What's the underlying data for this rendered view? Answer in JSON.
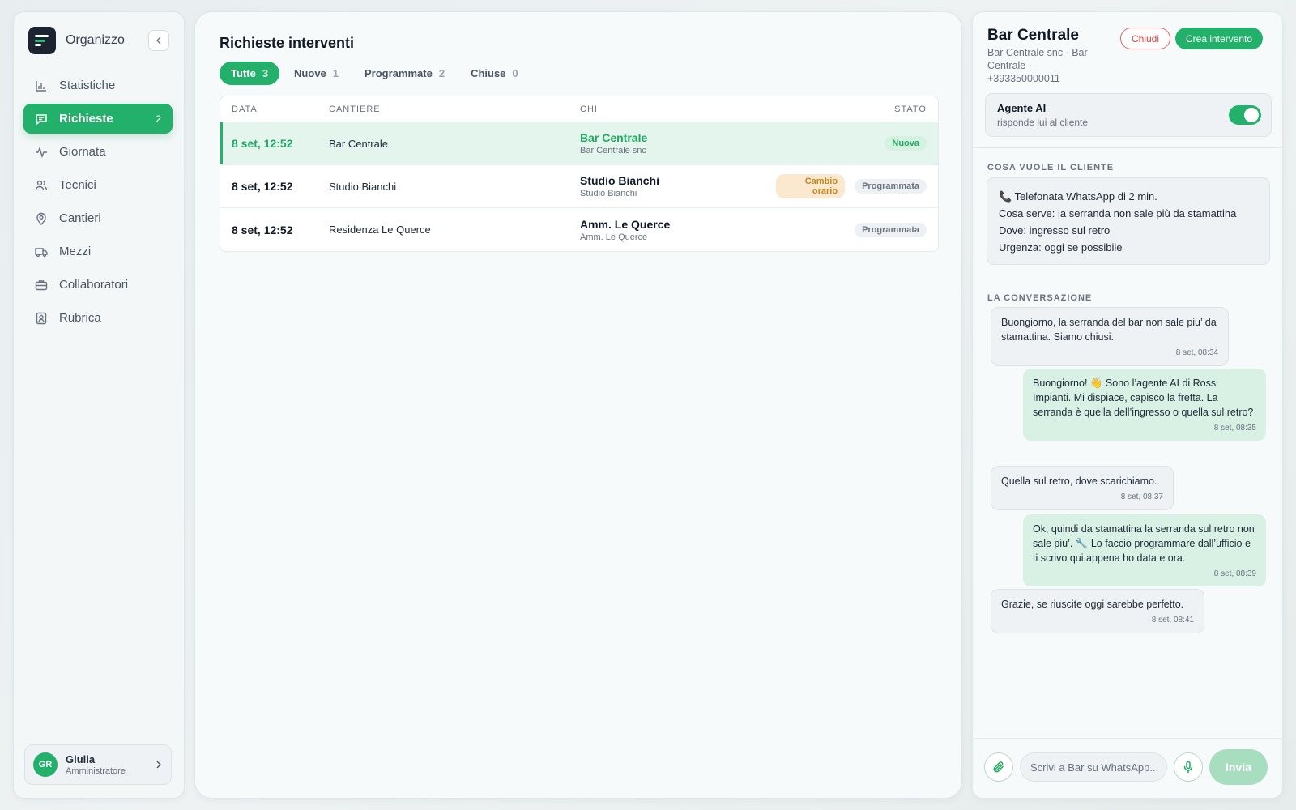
{
  "app": {
    "name": "Organizzo"
  },
  "sidebar": {
    "items": [
      {
        "label": "Statistiche",
        "icon": "bar-chart-icon"
      },
      {
        "label": "Richieste",
        "icon": "message-icon",
        "count": "2",
        "active": true
      },
      {
        "label": "Giornata",
        "icon": "activity-icon"
      },
      {
        "label": "Tecnici",
        "icon": "users-icon"
      },
      {
        "label": "Cantieri",
        "icon": "map-pin-icon"
      },
      {
        "label": "Mezzi",
        "icon": "truck-icon"
      },
      {
        "label": "Collaboratori",
        "icon": "briefcase-icon"
      },
      {
        "label": "Rubrica",
        "icon": "contact-book-icon"
      }
    ],
    "user": {
      "initials": "GR",
      "name": "Giulia",
      "role": "Amministratore"
    }
  },
  "main": {
    "title": "Richieste interventi",
    "tabs": [
      {
        "label": "Tutte",
        "count": "3",
        "active": true
      },
      {
        "label": "Nuove",
        "count": "1"
      },
      {
        "label": "Programmate",
        "count": "2"
      },
      {
        "label": "Chiuse",
        "count": "0"
      }
    ],
    "table": {
      "headers": [
        "DATA",
        "CANTIERE",
        "CHI",
        "STATO"
      ],
      "rows": [
        {
          "data": "8 set, 12:52",
          "cantiere": "Bar Centrale",
          "chi": "Bar Centrale",
          "chi_sub": "Bar Centrale snc",
          "extra_badge": "",
          "stato": "Nuova"
        },
        {
          "data": "8 set, 12:52",
          "cantiere": "Studio Bianchi",
          "chi": "Studio Bianchi",
          "chi_sub": "Studio Bianchi",
          "extra_badge": "Cambio orario",
          "stato": "Programmata"
        },
        {
          "data": "8 set, 12:52",
          "cantiere": "Residenza Le Querce",
          "chi": "Amm. Le Querce",
          "chi_sub": "Amm. Le Querce",
          "extra_badge": "",
          "stato": "Programmata"
        }
      ]
    }
  },
  "panel": {
    "title": "Bar Centrale",
    "subtitle": "Bar Centrale snc · Bar Centrale · +393350000011",
    "close_label": "Chiudi",
    "create_label": "Crea intervento",
    "ai": {
      "title": "Agente AI",
      "subtitle": "risponde lui al cliente",
      "enabled": true
    },
    "want_label": "COSA VUOLE IL CLIENTE",
    "want_lines": [
      "📞 Telefonata WhatsApp di 2 min.",
      "Cosa serve: la serranda non sale più da stamattina",
      "Dove: ingresso sul retro",
      "Urgenza: oggi se possibile"
    ],
    "conversation_label": "LA CONVERSAZIONE",
    "messages": [
      {
        "dir": "in",
        "text": "Buongiorno, la serranda del bar non sale piu’ da stamattina. Siamo chiusi.",
        "time": "8 set, 08:34"
      },
      {
        "dir": "out",
        "text": "Buongiorno! 👋 Sono l’agente AI di Rossi Impianti. Mi dispiace, capisco la fretta. La serranda è quella dell’ingresso o quella sul retro?",
        "time": "8 set, 08:35"
      },
      {
        "dir": "in",
        "text": "Quella sul retro, dove scarichiamo.",
        "time": "8 set, 08:37"
      },
      {
        "dir": "out",
        "text": "Ok, quindi da stamattina la serranda sul retro non sale piu’. 🔧 Lo faccio programmare dall’ufficio e ti scrivo qui appena ho data e ora.",
        "time": "8 set, 08:39"
      },
      {
        "dir": "in",
        "text": "Grazie, se riuscite oggi sarebbe perfetto.",
        "time": "8 set, 08:41"
      }
    ],
    "composer": {
      "placeholder": "Scrivi a Bar su WhatsApp...",
      "send_label": "Invia"
    }
  },
  "colors": {
    "accent": "#22b06a",
    "danger": "#d9443f",
    "warning": "#c7851c"
  }
}
